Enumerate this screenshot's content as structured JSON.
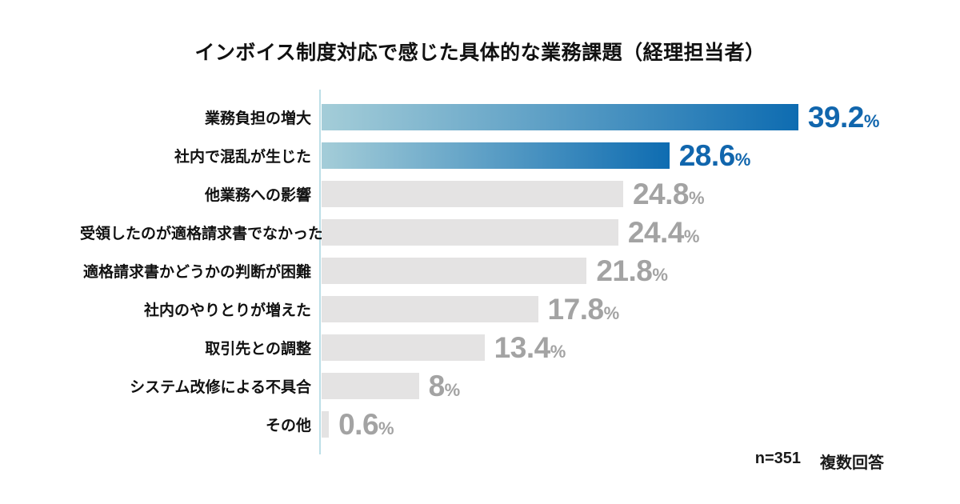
{
  "title": "インボイス制度対応で感じた具体的な業務課題（経理担当者）",
  "footer": {
    "sample_size": "n=351",
    "response_type": "複数回答"
  },
  "colors": {
    "highlight_gradient_start": "#a4cdd8",
    "highlight_gradient_end": "#0e6cb1",
    "highlight_value_text": "#1166ad",
    "muted_bar": "#e4e3e3",
    "muted_value_text": "#a3a3a3",
    "axis_line": "#bcdfe7",
    "text": "#111111"
  },
  "chart_data": {
    "type": "bar",
    "orientation": "horizontal",
    "title": "インボイス制度対応で感じた具体的な業務課題（経理担当者）",
    "categories": [
      "業務負担の増大",
      "社内で混乱が生じた",
      "他業務への影響",
      "受領したのが適格請求書でなかった",
      "適格請求書かどうかの判断が困難",
      "社内のやりとりが増えた",
      "取引先との調整",
      "システム改修による不具合",
      "その他"
    ],
    "values": [
      39.2,
      28.6,
      24.8,
      24.4,
      21.8,
      17.8,
      13.4,
      8,
      0.6
    ],
    "value_suffix": "%",
    "highlighted_indices": [
      0,
      1
    ],
    "xlim": [
      0,
      40
    ],
    "grid": false,
    "legend": "none",
    "annotation": "n=351 複数回答"
  }
}
